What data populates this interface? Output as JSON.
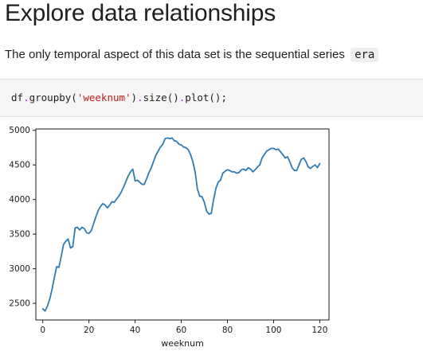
{
  "page": {
    "title": "Explore data relationships",
    "paragraph": "The only temporal aspect of this data set is the sequential series",
    "inline_code": "era"
  },
  "code_cell": {
    "tokens": [
      {
        "text": "df",
        "kind": "plain"
      },
      {
        "text": ".",
        "kind": "op"
      },
      {
        "text": "groupby(",
        "kind": "plain"
      },
      {
        "text": "'weeknum'",
        "kind": "str"
      },
      {
        "text": ")",
        "kind": "plain"
      },
      {
        "text": ".",
        "kind": "op"
      },
      {
        "text": "size()",
        "kind": "plain"
      },
      {
        "text": ".",
        "kind": "op"
      },
      {
        "text": "plot();",
        "kind": "plain"
      }
    ]
  },
  "colors": {
    "line": "#2f7bb4",
    "string": "#ba2121",
    "operator": "#aa22ff"
  },
  "chart_data": {
    "type": "line",
    "title": "",
    "xlabel": "weeknum",
    "ylabel": "",
    "xlim": [
      -3,
      124
    ],
    "ylim": [
      2260,
      5020
    ],
    "xticks": [
      0,
      20,
      40,
      60,
      80,
      100,
      120
    ],
    "yticks": [
      2500,
      3000,
      3500,
      4000,
      4500,
      5000
    ],
    "grid": false,
    "series": [
      {
        "x": [
          0,
          1,
          2,
          3,
          4,
          5,
          6,
          7,
          8,
          9,
          10,
          11,
          12,
          13,
          14,
          15,
          16,
          17,
          18,
          19,
          20,
          21,
          22,
          23,
          24,
          25,
          26,
          27,
          28,
          29,
          30,
          31,
          32,
          33,
          34,
          35,
          36,
          37,
          38,
          39,
          40,
          41,
          42,
          43,
          44,
          45,
          46,
          47,
          48,
          49,
          50,
          51,
          52,
          53,
          54,
          55,
          56,
          57,
          58,
          59,
          60,
          61,
          62,
          63,
          64,
          65,
          66,
          67,
          68,
          69,
          70,
          71,
          72,
          73,
          74,
          75,
          76,
          77,
          78,
          79,
          80,
          81,
          82,
          83,
          84,
          85,
          86,
          87,
          88,
          89,
          90,
          91,
          92,
          93,
          94,
          95,
          96,
          97,
          98,
          99,
          100,
          101,
          102,
          103,
          104,
          105,
          106,
          107,
          108,
          109,
          110,
          111,
          112,
          113,
          114,
          115,
          116,
          117,
          118,
          119,
          120
        ],
        "values": [
          2420,
          2390,
          2460,
          2560,
          2700,
          2870,
          3030,
          3020,
          3180,
          3350,
          3400,
          3430,
          3300,
          3320,
          3590,
          3600,
          3560,
          3600,
          3580,
          3520,
          3510,
          3550,
          3650,
          3750,
          3840,
          3900,
          3940,
          3920,
          3880,
          3920,
          3970,
          3960,
          4010,
          4050,
          4110,
          4180,
          4260,
          4340,
          4400,
          4440,
          4270,
          4280,
          4250,
          4220,
          4220,
          4300,
          4390,
          4460,
          4550,
          4640,
          4700,
          4760,
          4800,
          4880,
          4890,
          4880,
          4890,
          4850,
          4840,
          4800,
          4790,
          4760,
          4750,
          4720,
          4650,
          4550,
          4400,
          4150,
          4050,
          4040,
          3960,
          3830,
          3790,
          3800,
          4000,
          4160,
          4250,
          4280,
          4380,
          4410,
          4430,
          4420,
          4400,
          4400,
          4380,
          4390,
          4430,
          4440,
          4420,
          4460,
          4440,
          4400,
          4430,
          4470,
          4500,
          4600,
          4650,
          4700,
          4720,
          4740,
          4740,
          4720,
          4730,
          4690,
          4650,
          4600,
          4620,
          4550,
          4460,
          4420,
          4420,
          4500,
          4580,
          4600,
          4550,
          4470,
          4450,
          4480,
          4500,
          4460,
          4520
        ]
      }
    ]
  }
}
